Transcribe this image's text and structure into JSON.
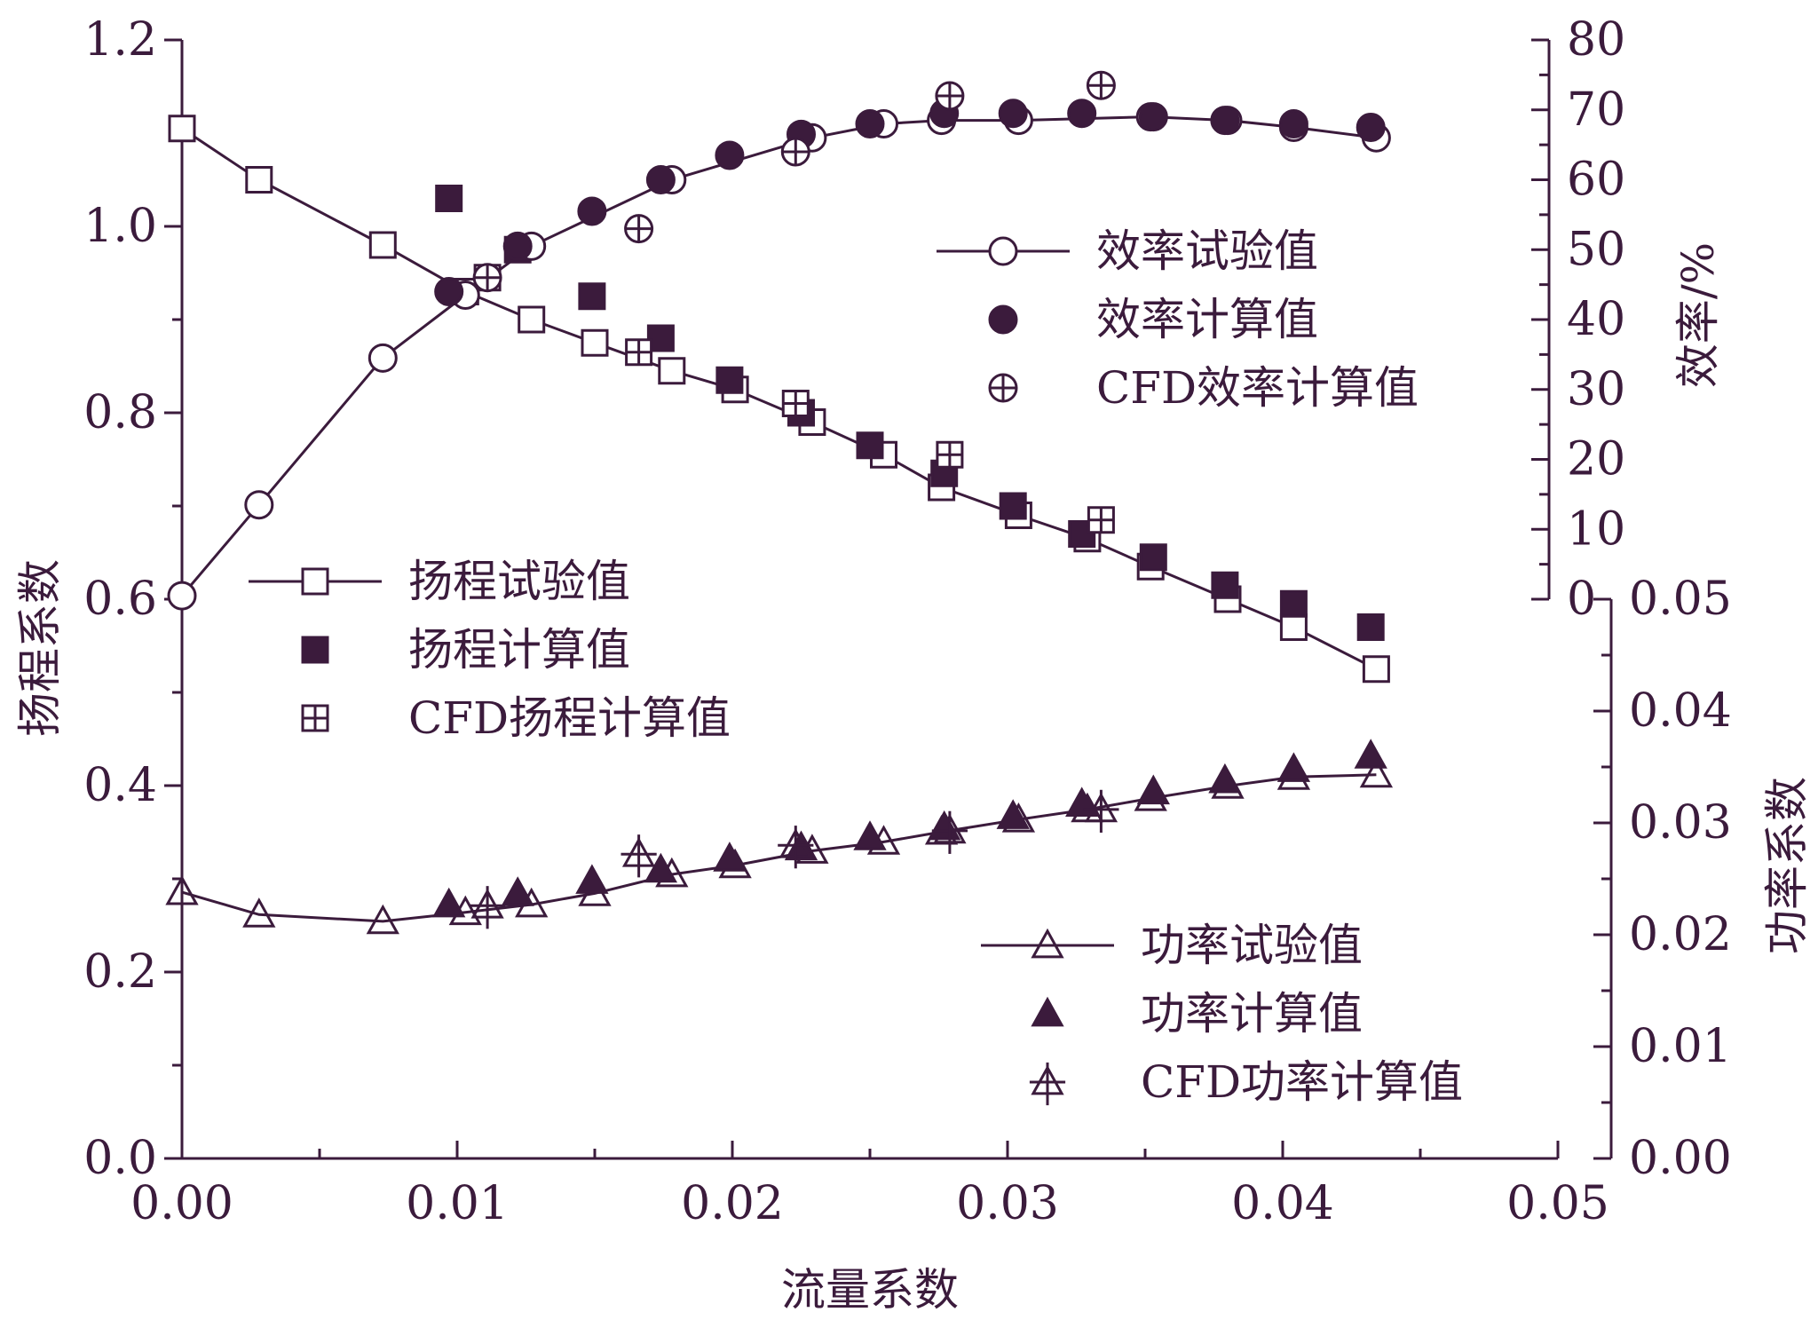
{
  "chart_data": {
    "type": "scatter",
    "title": "",
    "colors": {
      "ink": "#3b1b3c",
      "background": "#ffffff"
    },
    "grid": false,
    "x_axis": {
      "label": "流量系数",
      "range": [
        0,
        0.05
      ],
      "ticks": [
        "0.00",
        "0.01",
        "0.02",
        "0.03",
        "0.04",
        "0.05"
      ]
    },
    "y_axes": {
      "head": {
        "label": "扬程系数",
        "side": "left",
        "range": [
          0,
          1.2
        ],
        "ticks": [
          "0.0",
          "0.2",
          "0.4",
          "0.6",
          "0.8",
          "1.0",
          "1.2"
        ]
      },
      "efficiency": {
        "label": "效率/%",
        "side": "right-upper",
        "range": [
          0,
          80
        ],
        "ticks": [
          "0",
          "10",
          "20",
          "30",
          "40",
          "50",
          "60",
          "70",
          "80"
        ]
      },
      "power": {
        "label": "功率系数",
        "side": "right-lower",
        "range": [
          0,
          0.05
        ],
        "ticks": [
          "0.00",
          "0.01",
          "0.02",
          "0.03",
          "0.04",
          "0.05"
        ]
      }
    },
    "legends": {
      "efficiency": {
        "placement": "upper-right",
        "entries": [
          "效率试验值",
          "效率计算值",
          "CFD效率计算值"
        ]
      },
      "head": {
        "placement": "middle-left",
        "entries": [
          "扬程试验值",
          "扬程计算值",
          "CFD扬程计算值"
        ]
      },
      "power": {
        "placement": "lower-right",
        "entries": [
          "功率试验值",
          "功率计算值",
          "CFD功率计算值"
        ]
      }
    },
    "series": [
      {
        "name": "扬程试验值",
        "axis": "head",
        "marker": "square-open",
        "line": true,
        "x": [
          0.0,
          0.0028,
          0.0073,
          0.0103,
          0.0127,
          0.015,
          0.0178,
          0.0201,
          0.0229,
          0.0255,
          0.0276,
          0.0304,
          0.0329,
          0.0352,
          0.038,
          0.0404,
          0.0434
        ],
        "y": [
          1.105,
          1.05,
          0.98,
          0.93,
          0.9,
          0.875,
          0.845,
          0.825,
          0.79,
          0.755,
          0.72,
          0.69,
          0.665,
          0.635,
          0.6,
          0.57,
          0.525
        ]
      },
      {
        "name": "扬程计算值",
        "axis": "head",
        "marker": "square-filled",
        "line": false,
        "x": [
          0.0097,
          0.0122,
          0.0149,
          0.0174,
          0.0199,
          0.0225,
          0.025,
          0.0277,
          0.0302,
          0.0327,
          0.0353,
          0.0379,
          0.0404,
          0.0432
        ],
        "y": [
          1.03,
          0.975,
          0.925,
          0.88,
          0.835,
          0.8,
          0.765,
          0.735,
          0.7,
          0.67,
          0.645,
          0.615,
          0.595,
          0.57
        ]
      },
      {
        "name": "CFD扬程计算值",
        "axis": "head",
        "marker": "square-plus",
        "line": false,
        "x": [
          0.0111,
          0.0166,
          0.0223,
          0.0279,
          0.0334
        ],
        "y": [
          0.945,
          0.865,
          0.81,
          0.755,
          0.685
        ]
      },
      {
        "name": "效率试验值",
        "axis": "efficiency",
        "marker": "circle-open",
        "line": true,
        "x": [
          0.0,
          0.0028,
          0.0073,
          0.0103,
          0.0127,
          0.0178,
          0.0229,
          0.0255,
          0.0276,
          0.0304,
          0.0352,
          0.038,
          0.0404,
          0.0434
        ],
        "y": [
          0.5,
          13.5,
          34.5,
          43.5,
          50.5,
          60,
          66,
          68,
          68.5,
          68.5,
          69,
          68.5,
          67.5,
          66
        ]
      },
      {
        "name": "效率计算值",
        "axis": "efficiency",
        "marker": "circle-filled",
        "line": false,
        "x": [
          0.0097,
          0.0122,
          0.0149,
          0.0174,
          0.0199,
          0.0225,
          0.025,
          0.0277,
          0.0302,
          0.0327,
          0.0353,
          0.0379,
          0.0404,
          0.0432
        ],
        "y": [
          44,
          50.5,
          55.5,
          60,
          63.5,
          66.5,
          68,
          69.5,
          69.5,
          69.5,
          69,
          68.5,
          68,
          67.5
        ]
      },
      {
        "name": "CFD效率计算值",
        "axis": "efficiency",
        "marker": "circle-plus",
        "line": false,
        "x": [
          0.0111,
          0.0166,
          0.0223,
          0.0279,
          0.0334
        ],
        "y": [
          46,
          53,
          64,
          72,
          73.5
        ]
      },
      {
        "name": "功率试验值",
        "axis": "power",
        "marker": "triangle-open",
        "line": true,
        "x": [
          0.0,
          0.0028,
          0.0073,
          0.0103,
          0.0127,
          0.015,
          0.0178,
          0.0201,
          0.0229,
          0.0255,
          0.0276,
          0.0304,
          0.0329,
          0.0352,
          0.038,
          0.0404,
          0.0434
        ],
        "y": [
          0.0238,
          0.0218,
          0.0212,
          0.022,
          0.0227,
          0.0237,
          0.0254,
          0.0262,
          0.0275,
          0.0283,
          0.0292,
          0.0303,
          0.0312,
          0.0322,
          0.0333,
          0.0341,
          0.0343
        ]
      },
      {
        "name": "功率计算值",
        "axis": "power",
        "marker": "triangle-filled",
        "line": false,
        "x": [
          0.0097,
          0.0122,
          0.0149,
          0.0174,
          0.0199,
          0.0225,
          0.025,
          0.0277,
          0.0302,
          0.0327,
          0.0353,
          0.0379,
          0.0404,
          0.0432
        ],
        "y": [
          0.0227,
          0.0237,
          0.0248,
          0.0258,
          0.0268,
          0.0278,
          0.0287,
          0.0296,
          0.0306,
          0.0317,
          0.0328,
          0.0338,
          0.0348,
          0.036
        ]
      },
      {
        "name": "CFD功率计算值",
        "axis": "power",
        "marker": "triangle-plus",
        "line": false,
        "x": [
          0.0111,
          0.0166,
          0.0223,
          0.0279,
          0.0334
        ],
        "y": [
          0.0226,
          0.0272,
          0.028,
          0.0293,
          0.0312
        ]
      }
    ]
  }
}
